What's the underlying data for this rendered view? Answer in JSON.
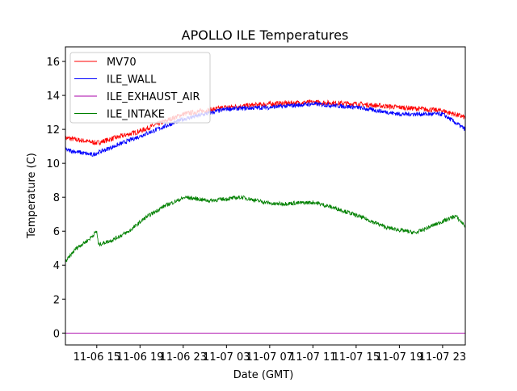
{
  "chart_data": {
    "type": "line",
    "title": "APOLLO ILE Temperatures",
    "xlabel": "Date (GMT)",
    "ylabel": "Temperature (C)",
    "x_units": "hours since 11-06 00:00 GMT",
    "xlim": [
      12.1,
      49.1
    ],
    "ylim": [
      -0.7,
      16.86
    ],
    "grid": false,
    "legend_position": "top-left",
    "x_ticks": [
      {
        "value": 15,
        "label": "11-06 15"
      },
      {
        "value": 19,
        "label": "11-06 19"
      },
      {
        "value": 23,
        "label": "11-06 23"
      },
      {
        "value": 27,
        "label": "11-07 03"
      },
      {
        "value": 31,
        "label": "11-07 07"
      },
      {
        "value": 35,
        "label": "11-07 11"
      },
      {
        "value": 39,
        "label": "11-07 15"
      },
      {
        "value": 43,
        "label": "11-07 19"
      },
      {
        "value": 47,
        "label": "11-07 23"
      }
    ],
    "y_ticks": [
      {
        "value": 0,
        "label": "0"
      },
      {
        "value": 2,
        "label": "2"
      },
      {
        "value": 4,
        "label": "4"
      },
      {
        "value": 6,
        "label": "6"
      },
      {
        "value": 8,
        "label": "8"
      },
      {
        "value": 10,
        "label": "10"
      },
      {
        "value": 12,
        "label": "12"
      },
      {
        "value": 14,
        "label": "14"
      },
      {
        "value": 16,
        "label": "16"
      }
    ],
    "series": [
      {
        "name": "MV70",
        "color": "#ff0000",
        "noise": 0.15,
        "x": [
          12.1,
          15,
          19,
          23,
          27,
          31,
          35,
          39,
          43,
          47,
          49.1
        ],
        "y": [
          11.5,
          11.2,
          11.9,
          12.9,
          13.3,
          13.5,
          13.6,
          13.5,
          13.3,
          13.1,
          12.7
        ]
      },
      {
        "name": "ILE_WALL",
        "color": "#0000ff",
        "noise": 0.13,
        "x": [
          12.1,
          14.6,
          19,
          23,
          27,
          31,
          35,
          39,
          43,
          47,
          49.1
        ],
        "y": [
          10.8,
          10.5,
          11.6,
          12.6,
          13.2,
          13.3,
          13.5,
          13.3,
          12.9,
          12.9,
          12.0
        ]
      },
      {
        "name": "ILE_EXHAUST_AIR",
        "color": "#aa00aa",
        "noise": 0,
        "x": [
          12.1,
          49.1
        ],
        "y": [
          0,
          0
        ]
      },
      {
        "name": "ILE_INTAKE",
        "color": "#008000",
        "noise": 0.12,
        "x": [
          12.1,
          13.1,
          14.25,
          15,
          15.15,
          16.5,
          18,
          19.5,
          21.3,
          23.2,
          25.4,
          28.4,
          31.4,
          35.1,
          37.4,
          39.6,
          41.9,
          44.5,
          46.7,
          48.2,
          49.1
        ],
        "y": [
          4.2,
          5.0,
          5.5,
          6.0,
          5.2,
          5.5,
          6.0,
          6.8,
          7.5,
          8.0,
          7.8,
          8.0,
          7.6,
          7.7,
          7.3,
          6.8,
          6.2,
          5.9,
          6.5,
          6.9,
          6.3
        ]
      }
    ]
  }
}
